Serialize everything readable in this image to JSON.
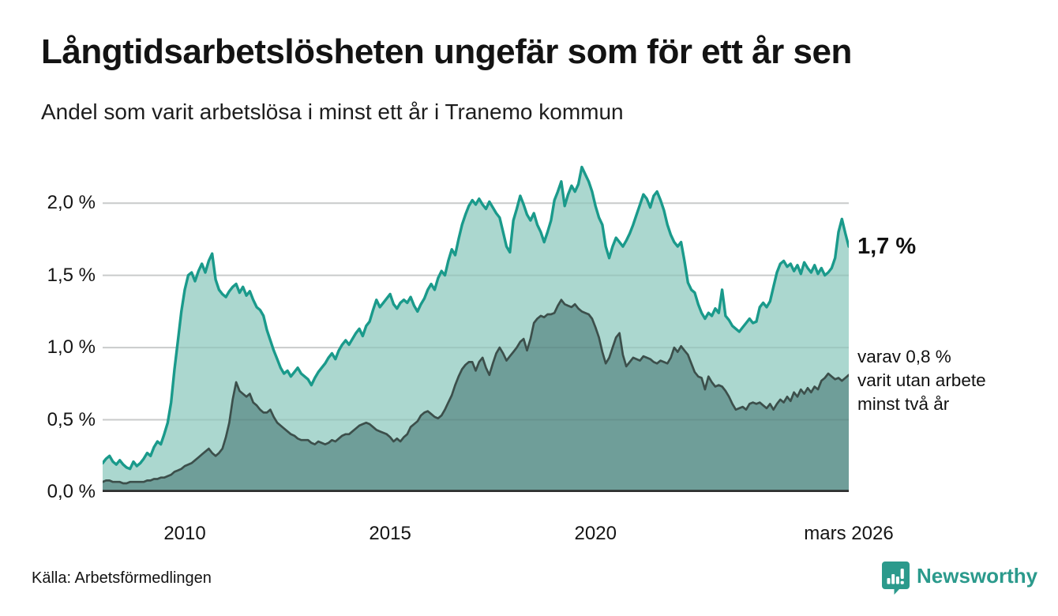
{
  "header": {
    "title": "Långtidsarbetslösheten ungefär som för ett år sen",
    "subtitle": "Andel som varit arbetslösa i minst ett år i Tranemo kommun"
  },
  "annotations": {
    "latest_total_label": "1,7 %",
    "secondary_lines": [
      "varav 0,8 %",
      "varit utan arbete",
      "minst två år"
    ]
  },
  "footer": {
    "source": "Källa: Arbetsförmedlingen",
    "brand": "Newsworthy"
  },
  "colors": {
    "series_total_line": "#1a9a8b",
    "series_total_fill": "#abd7cf",
    "series_twoyear_line": "#3c4f4b",
    "series_twoyear_fill": "#6f9e99",
    "gridline": "#dcdcdc",
    "axis_line": "#2e2e2e",
    "brand_teal": "#2b9a8c"
  },
  "chart_data": {
    "type": "area",
    "title": "Långtidsarbetslösheten ungefär som för ett år sen",
    "subtitle": "Andel som varit arbetslösa i minst ett år i Tranemo kommun",
    "unit": "%",
    "frequency": "monthly",
    "x_start": "2008-01",
    "x_end": "2026-03",
    "x_domain": [
      2008.0,
      2026.1667
    ],
    "ylim": [
      0,
      2.34
    ],
    "grid": true,
    "y_ticks": [
      0.0,
      0.5,
      1.0,
      1.5,
      2.0
    ],
    "y_tick_labels": [
      "0,0 %",
      "0,5 %",
      "1,0 %",
      "1,5 %",
      "2,0 %"
    ],
    "x_tick_positions": [
      2010.0,
      2015.0,
      2020.0,
      2026.1667
    ],
    "x_tick_labels": [
      "2010",
      "2015",
      "2020",
      "mars 2026"
    ],
    "latest_values": {
      "total": "1,7 %",
      "two_year": "0,8 %"
    },
    "series": [
      {
        "name": "Andel arbetslösa minst ett år",
        "role": "total",
        "values": [
          0.2,
          0.23,
          0.25,
          0.21,
          0.19,
          0.22,
          0.19,
          0.17,
          0.16,
          0.21,
          0.18,
          0.2,
          0.23,
          0.27,
          0.25,
          0.31,
          0.35,
          0.33,
          0.4,
          0.48,
          0.62,
          0.85,
          1.05,
          1.25,
          1.4,
          1.5,
          1.52,
          1.46,
          1.53,
          1.58,
          1.52,
          1.6,
          1.65,
          1.47,
          1.4,
          1.37,
          1.35,
          1.39,
          1.42,
          1.44,
          1.38,
          1.42,
          1.36,
          1.39,
          1.33,
          1.28,
          1.26,
          1.22,
          1.12,
          1.05,
          0.98,
          0.92,
          0.86,
          0.82,
          0.84,
          0.8,
          0.83,
          0.86,
          0.82,
          0.8,
          0.78,
          0.74,
          0.79,
          0.83,
          0.86,
          0.89,
          0.93,
          0.96,
          0.92,
          0.98,
          1.02,
          1.05,
          1.02,
          1.06,
          1.1,
          1.13,
          1.08,
          1.15,
          1.18,
          1.26,
          1.33,
          1.28,
          1.31,
          1.34,
          1.37,
          1.3,
          1.27,
          1.31,
          1.33,
          1.31,
          1.35,
          1.29,
          1.25,
          1.3,
          1.34,
          1.4,
          1.44,
          1.4,
          1.48,
          1.53,
          1.5,
          1.6,
          1.68,
          1.64,
          1.75,
          1.85,
          1.92,
          1.98,
          2.02,
          1.99,
          2.03,
          1.99,
          1.96,
          2.01,
          1.97,
          1.93,
          1.9,
          1.8,
          1.7,
          1.66,
          1.88,
          1.96,
          2.05,
          1.99,
          1.92,
          1.88,
          1.93,
          1.85,
          1.8,
          1.73,
          1.8,
          1.88,
          2.02,
          2.08,
          2.15,
          1.98,
          2.06,
          2.12,
          2.08,
          2.13,
          2.25,
          2.2,
          2.15,
          2.08,
          1.98,
          1.9,
          1.85,
          1.7,
          1.62,
          1.7,
          1.76,
          1.73,
          1.7,
          1.74,
          1.79,
          1.85,
          1.92,
          1.99,
          2.06,
          2.03,
          1.97,
          2.05,
          2.08,
          2.02,
          1.95,
          1.85,
          1.78,
          1.73,
          1.7,
          1.73,
          1.6,
          1.45,
          1.4,
          1.38,
          1.3,
          1.24,
          1.2,
          1.24,
          1.22,
          1.27,
          1.24,
          1.4,
          1.22,
          1.19,
          1.15,
          1.13,
          1.11,
          1.14,
          1.17,
          1.2,
          1.17,
          1.18,
          1.28,
          1.31,
          1.28,
          1.32,
          1.42,
          1.52,
          1.58,
          1.6,
          1.56,
          1.58,
          1.53,
          1.57,
          1.51,
          1.59,
          1.55,
          1.52,
          1.57,
          1.51,
          1.55,
          1.5,
          1.52,
          1.55,
          1.62,
          1.8,
          1.89,
          1.79,
          1.7
        ]
      },
      {
        "name": "varav arbetslösa minst två år",
        "role": "two_year",
        "values": [
          0.07,
          0.08,
          0.08,
          0.07,
          0.07,
          0.07,
          0.06,
          0.06,
          0.07,
          0.07,
          0.07,
          0.07,
          0.07,
          0.08,
          0.08,
          0.09,
          0.09,
          0.1,
          0.1,
          0.11,
          0.12,
          0.14,
          0.15,
          0.16,
          0.18,
          0.19,
          0.2,
          0.22,
          0.24,
          0.26,
          0.28,
          0.3,
          0.27,
          0.25,
          0.27,
          0.3,
          0.38,
          0.48,
          0.64,
          0.76,
          0.7,
          0.68,
          0.66,
          0.68,
          0.62,
          0.6,
          0.57,
          0.55,
          0.55,
          0.57,
          0.52,
          0.48,
          0.46,
          0.44,
          0.42,
          0.4,
          0.39,
          0.37,
          0.36,
          0.36,
          0.36,
          0.34,
          0.33,
          0.35,
          0.34,
          0.33,
          0.34,
          0.36,
          0.35,
          0.37,
          0.39,
          0.4,
          0.4,
          0.42,
          0.44,
          0.46,
          0.47,
          0.48,
          0.47,
          0.45,
          0.43,
          0.42,
          0.41,
          0.4,
          0.38,
          0.35,
          0.37,
          0.35,
          0.38,
          0.4,
          0.45,
          0.47,
          0.49,
          0.53,
          0.55,
          0.56,
          0.54,
          0.52,
          0.51,
          0.53,
          0.57,
          0.62,
          0.67,
          0.74,
          0.8,
          0.85,
          0.88,
          0.9,
          0.9,
          0.84,
          0.9,
          0.93,
          0.86,
          0.81,
          0.89,
          0.96,
          1.0,
          0.96,
          0.91,
          0.94,
          0.97,
          1.0,
          1.04,
          1.06,
          0.98,
          1.06,
          1.17,
          1.2,
          1.22,
          1.21,
          1.23,
          1.23,
          1.24,
          1.29,
          1.33,
          1.3,
          1.29,
          1.28,
          1.3,
          1.27,
          1.25,
          1.24,
          1.23,
          1.2,
          1.14,
          1.07,
          0.97,
          0.89,
          0.93,
          1.0,
          1.07,
          1.1,
          0.95,
          0.87,
          0.9,
          0.93,
          0.92,
          0.91,
          0.94,
          0.93,
          0.92,
          0.9,
          0.89,
          0.91,
          0.9,
          0.89,
          0.93,
          1.0,
          0.97,
          1.01,
          0.98,
          0.95,
          0.89,
          0.83,
          0.8,
          0.79,
          0.71,
          0.8,
          0.76,
          0.73,
          0.74,
          0.73,
          0.7,
          0.66,
          0.61,
          0.57,
          0.58,
          0.59,
          0.57,
          0.61,
          0.62,
          0.61,
          0.62,
          0.6,
          0.58,
          0.61,
          0.57,
          0.61,
          0.64,
          0.62,
          0.66,
          0.63,
          0.69,
          0.66,
          0.71,
          0.68,
          0.72,
          0.69,
          0.73,
          0.71,
          0.77,
          0.79,
          0.82,
          0.8,
          0.78,
          0.79,
          0.77,
          0.79,
          0.81
        ]
      }
    ]
  }
}
